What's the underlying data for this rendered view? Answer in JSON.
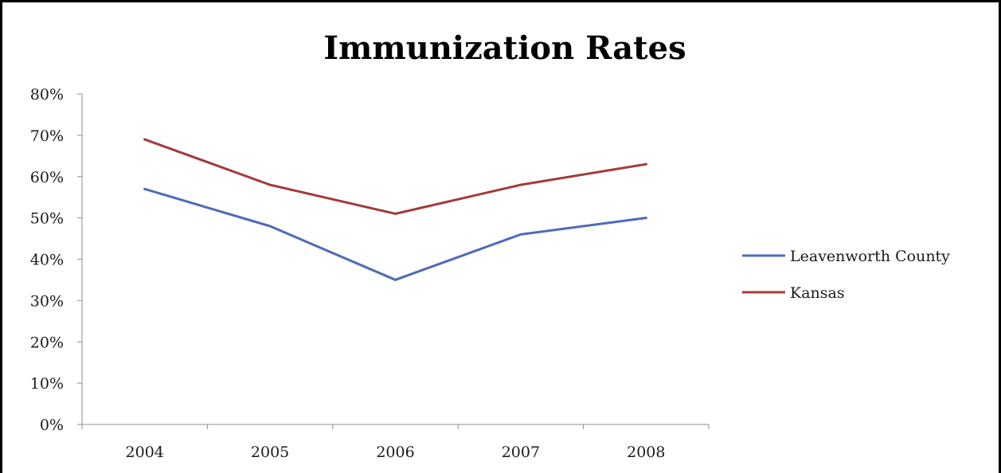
{
  "chart_data": {
    "type": "line",
    "title": "Immunization Rates",
    "categories": [
      "2004",
      "2005",
      "2006",
      "2007",
      "2008"
    ],
    "ylim": [
      0,
      0.8
    ],
    "y_ticks": [
      {
        "value": 0.8,
        "label": "80%"
      },
      {
        "value": 0.7,
        "label": "70%"
      },
      {
        "value": 0.6,
        "label": "60%"
      },
      {
        "value": 0.5,
        "label": "50%"
      },
      {
        "value": 0.4,
        "label": "40%"
      },
      {
        "value": 0.3,
        "label": "30%"
      },
      {
        "value": 0.2,
        "label": "20%"
      },
      {
        "value": 0.1,
        "label": "10%"
      },
      {
        "value": 0.0,
        "label": "0%"
      }
    ],
    "grid": false,
    "legend_position": "right",
    "series": [
      {
        "name": "Leavenworth County",
        "values": [
          0.57,
          0.48,
          0.35,
          0.46,
          0.5
        ],
        "color": "#4f6bb8"
      },
      {
        "name": "Kansas",
        "values": [
          0.69,
          0.58,
          0.51,
          0.58,
          0.63
        ],
        "color": "#a23b3b"
      }
    ]
  }
}
